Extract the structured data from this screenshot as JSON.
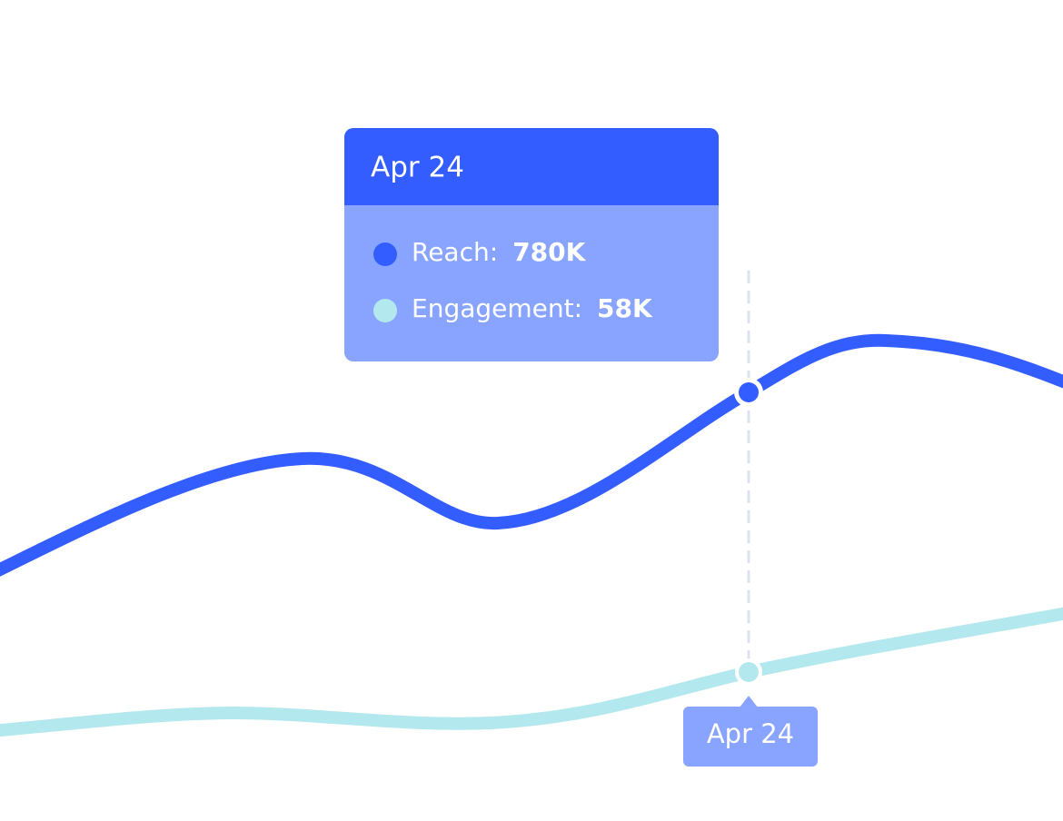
{
  "tooltip": {
    "title": "Apr 24",
    "items": [
      {
        "label": "Reach:",
        "value": "780K"
      },
      {
        "label": "Engagement:",
        "value": "58K"
      }
    ]
  },
  "x_label": "Apr 24"
}
